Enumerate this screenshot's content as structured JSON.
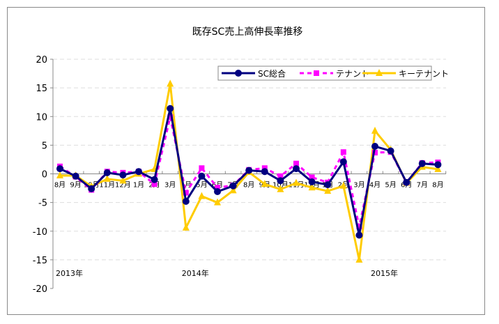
{
  "chart_data": {
    "type": "line",
    "title": "既存SC売上高伸長率推移",
    "ylim": [
      -20,
      20
    ],
    "yticks": [
      20,
      15,
      10,
      5,
      0,
      -5,
      -10,
      -15,
      -20
    ],
    "categories": [
      "8月",
      "9月",
      "10月",
      "11月",
      "12月",
      "1月",
      "2月",
      "3月",
      "4月",
      "5月",
      "6月",
      "7月",
      "8月",
      "9月",
      "10月",
      "11月",
      "12月",
      "1月",
      "2月",
      "3月",
      "4月",
      "5月",
      "6月",
      "7月",
      "8月"
    ],
    "year_labels": [
      {
        "label": "2013年",
        "index": 0
      },
      {
        "label": "2014年",
        "index": 8
      },
      {
        "label": "2015年",
        "index": 20
      }
    ],
    "legend_position": "top-right",
    "series": [
      {
        "name": "SC総合",
        "color": "#000080",
        "marker": "circle",
        "dash": false,
        "values": [
          0.9,
          -0.4,
          -2.6,
          0.2,
          -0.2,
          0.4,
          -1.0,
          11.4,
          -4.8,
          -0.4,
          -3.1,
          -2.1,
          0.6,
          0.4,
          -1.2,
          0.9,
          -1.4,
          -1.9,
          2.1,
          -10.7,
          4.8,
          4.0,
          -1.5,
          1.8,
          1.6
        ]
      },
      {
        "name": "テナント",
        "color": "#FF00FF",
        "marker": "square",
        "dash": true,
        "values": [
          1.3,
          -0.5,
          -2.8,
          0.4,
          0.2,
          0.4,
          -1.8,
          9.9,
          -3.3,
          1.0,
          -2.4,
          -2.0,
          0.7,
          1.0,
          -0.4,
          1.8,
          -0.6,
          -1.5,
          3.8,
          -9.2,
          3.7,
          3.8,
          -1.5,
          1.9,
          2.0
        ]
      },
      {
        "name": "キーテナント",
        "color": "#FFCC00",
        "marker": "triangle",
        "dash": false,
        "values": [
          -0.3,
          -0.3,
          -2.2,
          -0.9,
          -1.2,
          0.0,
          0.8,
          15.7,
          -9.4,
          -3.9,
          -5.0,
          -2.9,
          0.3,
          -1.8,
          -2.7,
          -1.6,
          -2.4,
          -3.0,
          -2.1,
          -15.0,
          7.5,
          4.2,
          -1.6,
          1.2,
          0.8
        ]
      }
    ]
  }
}
